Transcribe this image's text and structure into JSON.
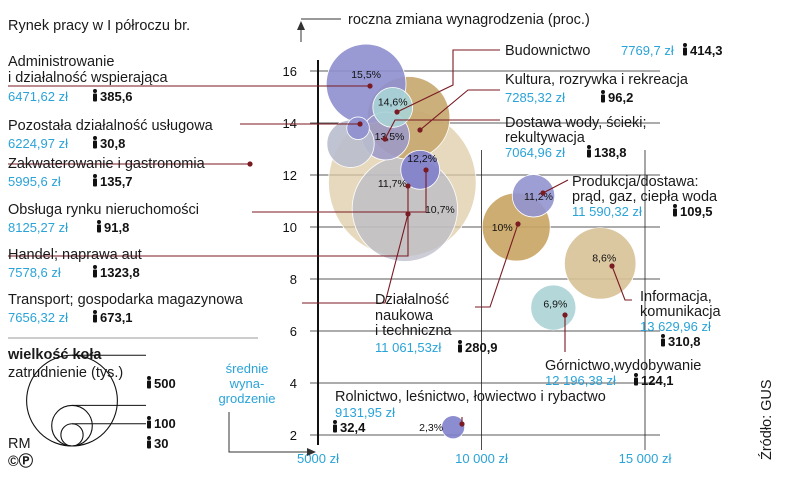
{
  "title": "Rynek pracy w I półroczu br.",
  "y_axis_label": "roczna zmiana wynagrodzenia (proc.)",
  "x_axis_label_lines": [
    "średnie",
    "wyna-",
    "grodzenie"
  ],
  "source": "Źródło: GUS",
  "credit": "RM",
  "copyright": "©Ⓟ",
  "legend": {
    "title_line1": "wielkość koła",
    "title_line2": "zatrudnienie (tys.)",
    "items": [
      {
        "value": 500,
        "label": "500"
      },
      {
        "value": 100,
        "label": "100"
      },
      {
        "value": 30,
        "label": "30"
      }
    ]
  },
  "chart_data": {
    "type": "scatter",
    "title": "Rynek pracy w I półroczu br.",
    "xlabel": "średnie wynagrodzenie",
    "ylabel": "roczna zmiana wynagrodzenia (proc.)",
    "x_ticks": [
      {
        "value": 5000,
        "label": "5000 zł"
      },
      {
        "value": 10000,
        "label": "10 000 zł"
      },
      {
        "value": 15000,
        "label": "15 000 zł"
      }
    ],
    "y_ticks": [
      2,
      4,
      6,
      8,
      10,
      12,
      14,
      16
    ],
    "xlim": [
      5000,
      16500
    ],
    "ylim": [
      2,
      16.5
    ],
    "points": [
      {
        "id": "administracja",
        "name_lines": [
          "Administrowanie",
          "i działalność wspierająca"
        ],
        "salary": 6471.62,
        "salary_label": "6471,62 zł",
        "change": 15.5,
        "pct_label": "15,5%",
        "employment": 385.6,
        "employment_label": "385,6",
        "color": "#8e8fcf"
      },
      {
        "id": "kultura",
        "name_lines": [
          "Kultura, rozrywka i rekreacja"
        ],
        "salary": 7285.32,
        "salary_label": "7285,32 zł",
        "change": 14.6,
        "pct_label": "14,6%",
        "employment": 96.2,
        "employment_label": "96,2",
        "color": "#a8d4d6"
      },
      {
        "id": "budownictwo",
        "name_lines": [
          "Budownictwo"
        ],
        "salary": 7769.7,
        "salary_label": "7769,7 zł",
        "change": 14.2,
        "pct_label": "",
        "employment": 414.3,
        "employment_label": "414,3",
        "color": "#c6a76e"
      },
      {
        "id": "pozostala",
        "name_lines": [
          "Pozostała działalność usługowa"
        ],
        "salary": 6224.97,
        "salary_label": "6224,97 zł",
        "change": 13.8,
        "pct_label": "",
        "employment": 30.8,
        "employment_label": "30,8",
        "color": "#8e8fcf"
      },
      {
        "id": "dostawa_wody",
        "name_lines": [
          "Dostawa wody, ścieki;",
          "rekultywacja"
        ],
        "salary": 7064.96,
        "salary_label": "7064,96 zł",
        "change": 13.5,
        "pct_label": "13,5%",
        "employment": 138.8,
        "employment_label": "138,8",
        "color": "#9d9ac8"
      },
      {
        "id": "zakwaterowanie",
        "name_lines": [
          "Zakwaterowanie i gastronomia"
        ],
        "salary": 5995.6,
        "salary_label": "5995,6 zł",
        "change": 13.2,
        "pct_label": "",
        "employment": 135.7,
        "employment_label": "135,7",
        "color": "#b9bccd"
      },
      {
        "id": "obsluga_nieruchomosci",
        "name_lines": [
          "Obsługa rynku nieruchomości"
        ],
        "salary": 8125.27,
        "salary_label": "8125,27 zł",
        "change": 12.2,
        "pct_label": "12,2%",
        "employment": 91.8,
        "employment_label": "91,8",
        "color": "#7f80cc"
      },
      {
        "id": "handel",
        "name_lines": [
          "Handel; naprawa aut"
        ],
        "salary": 7578.6,
        "salary_label": "7578,6 zł",
        "change": 11.7,
        "pct_label": "11,7%",
        "employment": 1323.8,
        "employment_label": "1323,8",
        "color": "#dccba5"
      },
      {
        "id": "transport",
        "name_lines": [
          "Transport; gospodarka magazynowa"
        ],
        "salary": 7656.32,
        "salary_label": "7656,32 zł",
        "change": 10.7,
        "pct_label": "10,7%",
        "employment": 673.1,
        "employment_label": "673,1",
        "color": "#b8bac6"
      },
      {
        "id": "energia",
        "name_lines": [
          "Produkcja/dostawa:",
          "prąd, gaz, ciepła woda"
        ],
        "salary": 11590.32,
        "salary_label": "11 590,32 zł",
        "change": 11.2,
        "pct_label": "11,2%",
        "employment": 109.5,
        "employment_label": "109,5",
        "color": "#9193cf"
      },
      {
        "id": "nauka",
        "name_lines": [
          "Działalność",
          "naukowa",
          "i techniczna"
        ],
        "salary": 11061.53,
        "salary_label": "11 061,53zł",
        "change": 10.0,
        "pct_label": "10%",
        "employment": 280.9,
        "employment_label": "280,9",
        "color": "#c8a463"
      },
      {
        "id": "informacja",
        "name_lines": [
          "Informacja,",
          "komunikacja"
        ],
        "salary": 13629.96,
        "salary_label": "13 629,96 zł",
        "change": 8.6,
        "pct_label": "8,6%",
        "employment": 310.8,
        "employment_label": "310,8",
        "color": "#d7c196"
      },
      {
        "id": "gornictwo",
        "name_lines": [
          "Górnictwo,wydobywanie"
        ],
        "salary": 12196.38,
        "salary_label": "12 196,38 zł",
        "change": 6.9,
        "pct_label": "6,9%",
        "employment": 124.1,
        "employment_label": "124,1",
        "color": "#acd4d6"
      },
      {
        "id": "rolnictwo",
        "name_lines": [
          "Rolnictwo, leśnictwo, łowiectwo i rybactwo"
        ],
        "salary": 9131.95,
        "salary_label": "9131,95 zł",
        "change": 2.3,
        "pct_label": "2,3%",
        "employment": 32.4,
        "employment_label": "32,4",
        "color": "#7f80cc"
      }
    ]
  }
}
